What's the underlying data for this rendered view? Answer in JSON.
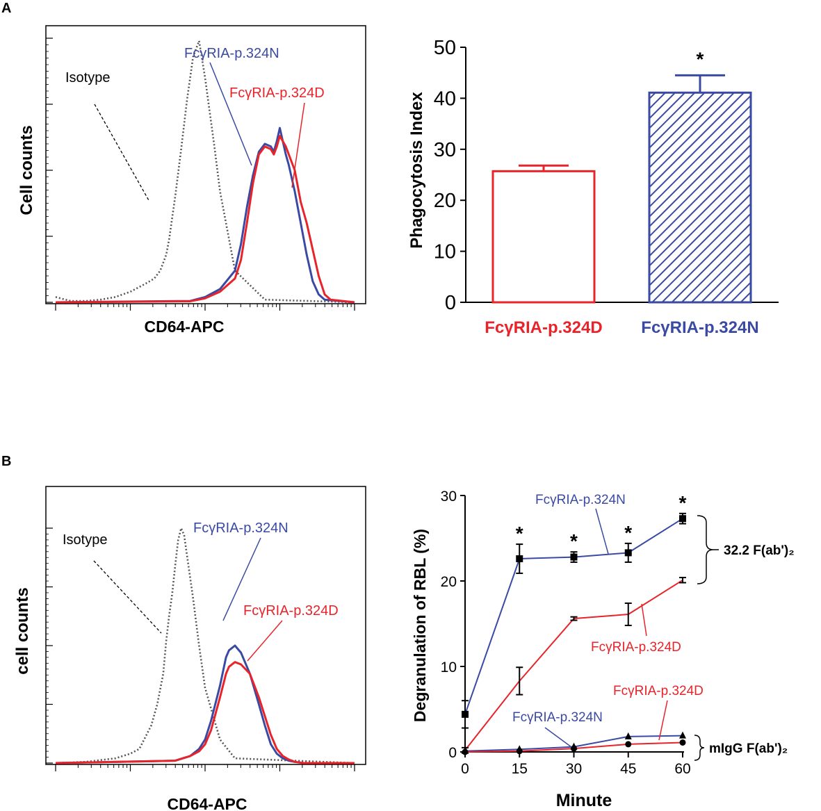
{
  "colors": {
    "red": "#e8232a",
    "blue": "#3a4aa3",
    "black": "#000000",
    "gray": "#555555"
  },
  "panel_labels": [
    "A",
    "B"
  ],
  "chart_data": [
    {
      "id": "A-hist",
      "type": "line",
      "panel": "A",
      "title": "",
      "xlabel": "CD64-APC",
      "ylabel": "Cell counts",
      "x_scale": "log",
      "xlim": [
        0,
        100
      ],
      "ylim": [
        0,
        100
      ],
      "series": [
        {
          "name": "Isotype",
          "style": "dotted",
          "color": "gray",
          "x": [
            0,
            5,
            10,
            15,
            20,
            25,
            30,
            33,
            35,
            37,
            38,
            40,
            42,
            44,
            46,
            48,
            50,
            53,
            55,
            60,
            70,
            100
          ],
          "y": [
            2,
            0.5,
            0.5,
            1,
            2,
            4,
            7,
            9,
            12,
            18,
            24,
            40,
            58,
            77,
            93,
            99,
            85,
            60,
            42,
            12,
            1,
            0
          ]
        },
        {
          "name": "FcγRIA-p.324N",
          "style": "solid",
          "color": "blue",
          "x": [
            0,
            45,
            50,
            55,
            60,
            62,
            64,
            66,
            68,
            70,
            72,
            73,
            74,
            75,
            77,
            78,
            80,
            82,
            84,
            86,
            88,
            90,
            100
          ],
          "y": [
            0,
            0.5,
            2,
            5,
            12,
            22,
            36,
            48,
            57,
            60,
            59,
            57,
            61,
            66,
            56,
            52,
            42,
            30,
            18,
            8,
            3,
            1,
            0
          ]
        },
        {
          "name": "FcγRIA-p.324D",
          "style": "solid",
          "color": "red",
          "x": [
            0,
            45,
            50,
            55,
            60,
            62,
            64,
            66,
            68,
            70,
            72,
            73,
            74,
            75,
            77,
            78,
            80,
            82,
            84,
            86,
            88,
            90,
            92,
            100
          ],
          "y": [
            0,
            0.4,
            1.5,
            4,
            9,
            16,
            30,
            45,
            56,
            59,
            58,
            56,
            59,
            63,
            59,
            56,
            50,
            38,
            30,
            20,
            10,
            3,
            1,
            0
          ]
        }
      ],
      "annotations": [
        "Isotype",
        "FcγRIA-p.324N",
        "FcγRIA-p.324D"
      ]
    },
    {
      "id": "A-bar",
      "type": "bar",
      "panel": "A",
      "title": "",
      "xlabel": "",
      "ylabel": "Phagocytosis Index",
      "ylim": [
        0,
        50
      ],
      "yticks": [
        0,
        10,
        20,
        30,
        40,
        50
      ],
      "categories": [
        "FcγRIA-p.324D",
        "FcγRIA-p.324N"
      ],
      "values": [
        25.7,
        41.1
      ],
      "errors": [
        1.1,
        3.4
      ],
      "bar_styles": [
        "open-red",
        "hatched-blue"
      ],
      "significance": [
        "",
        "*"
      ]
    },
    {
      "id": "B-hist",
      "type": "line",
      "panel": "B",
      "title": "",
      "xlabel": "CD64-APC",
      "ylabel": "cell counts",
      "x_scale": "log",
      "xlim": [
        0,
        100
      ],
      "ylim": [
        0,
        100
      ],
      "series": [
        {
          "name": "Isotype",
          "style": "dotted",
          "color": "gray",
          "x": [
            0,
            10,
            20,
            25,
            28,
            30,
            32,
            34,
            36,
            37,
            38,
            39,
            40,
            41,
            42,
            43,
            44,
            46,
            48,
            50,
            55,
            60,
            100
          ],
          "y": [
            0,
            0.5,
            2,
            4,
            6,
            11,
            16,
            25,
            38,
            52,
            63,
            72,
            84,
            95,
            100,
            97,
            88,
            70,
            50,
            32,
            10,
            2,
            0
          ]
        },
        {
          "name": "FcγRIA-p.324N",
          "style": "solid",
          "color": "blue",
          "x": [
            0,
            40,
            45,
            48,
            50,
            52,
            55,
            57,
            58,
            60,
            62,
            65,
            68,
            70,
            72,
            74,
            76,
            78,
            80,
            83,
            100
          ],
          "y": [
            0,
            1,
            3,
            6,
            10,
            18,
            33,
            45,
            48,
            50,
            47,
            38,
            25,
            16,
            8,
            4,
            2,
            1,
            0.5,
            0,
            0
          ]
        },
        {
          "name": "FcγRIA-p.324D",
          "style": "solid",
          "color": "red",
          "x": [
            0,
            40,
            45,
            48,
            50,
            52,
            55,
            57,
            58,
            60,
            62,
            65,
            68,
            70,
            72,
            74,
            76,
            78,
            80,
            83,
            100
          ],
          "y": [
            0,
            1,
            3,
            5,
            8,
            14,
            28,
            38,
            41,
            43,
            42,
            38,
            28,
            20,
            12,
            6,
            3,
            1.5,
            0.5,
            0,
            0
          ]
        }
      ],
      "annotations": [
        "Isotype",
        "FcγRIA-p.324N",
        "FcγRIA-p.324D"
      ]
    },
    {
      "id": "B-line",
      "type": "line",
      "panel": "B",
      "title": "",
      "xlabel": "Minute",
      "ylabel": "Degranulation of RBL (%)",
      "xlim": [
        0,
        60
      ],
      "ylim": [
        0,
        30
      ],
      "xticks": [
        0,
        15,
        30,
        45,
        60
      ],
      "yticks": [
        0,
        10,
        20,
        30
      ],
      "x": [
        0,
        15,
        30,
        45,
        60
      ],
      "series": [
        {
          "name": "FcγRIA-p.324N",
          "group": "32.2 F(ab')₂",
          "color": "blue",
          "marker": "square",
          "values": [
            4.4,
            22.6,
            22.8,
            23.3,
            27.3
          ],
          "errors": [
            1.6,
            1.7,
            0.6,
            1.1,
            0.6
          ]
        },
        {
          "name": "FcγRIA-p.324D",
          "group": "32.2 F(ab')₂",
          "color": "red",
          "marker": "none",
          "values": [
            0.2,
            8.3,
            15.6,
            16.1,
            20.1
          ],
          "errors": [
            0.3,
            1.6,
            0.2,
            1.3,
            0.3
          ]
        },
        {
          "name": "FcγRIA-p.324N",
          "group": "mIgG F(ab')₂",
          "color": "blue",
          "marker": "triangle",
          "values": [
            0.1,
            0.3,
            0.6,
            1.8,
            1.9
          ],
          "errors": [
            0,
            0,
            0,
            0,
            0
          ]
        },
        {
          "name": "FcγRIA-p.324D",
          "group": "mIgG F(ab')₂",
          "color": "red",
          "marker": "circle",
          "values": [
            0.0,
            0.1,
            0.4,
            0.9,
            1.1
          ],
          "errors": [
            0,
            0,
            0,
            0,
            0
          ]
        }
      ],
      "significance": [
        {
          "x": 15,
          "label": "*"
        },
        {
          "x": 30,
          "label": "*"
        },
        {
          "x": 45,
          "label": "*"
        },
        {
          "x": 60,
          "label": "*"
        }
      ],
      "bracket_labels": [
        "32.2 F(ab')₂",
        "mIgG F(ab')₂"
      ],
      "annotations": [
        "FcγRIA-p.324N",
        "FcγRIA-p.324D",
        "FcγRIA-p.324D",
        "FcγRIA-p.324N"
      ]
    }
  ]
}
